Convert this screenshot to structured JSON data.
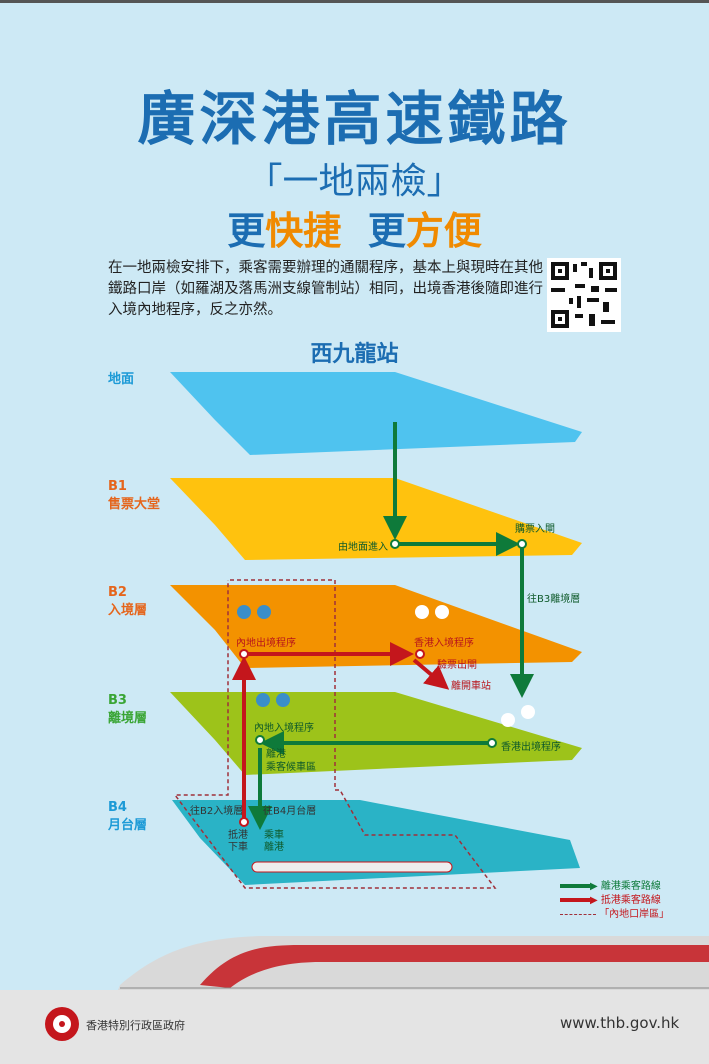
{
  "title": "廣深港高速鐵路",
  "subtitle": "「一地兩檢」",
  "slogan": {
    "part1": "更",
    "part2": "快捷",
    "part3": "更",
    "part4": "方便"
  },
  "intro": "在一地兩檢安排下，乘客需要辦理的通關程序，基本上與現時在其他鐵路口岸（如羅湖及落馬洲支線管制站）相同，出境香港後隨即進行入境內地程序，反之亦然。",
  "station": "西九龍站",
  "levels": [
    {
      "code": "",
      "name": "地面",
      "color": "#4fc3ef",
      "label_color": "#1c9ad6"
    },
    {
      "code": "B1",
      "name": "售票大堂",
      "color": "#ffc20e",
      "label_color": "#e5651c"
    },
    {
      "code": "B2",
      "name": "入境層",
      "color": "#f39200",
      "label_color": "#e5651c"
    },
    {
      "code": "B3",
      "name": "離境層",
      "color": "#9dc31a",
      "label_color": "#3aa535"
    },
    {
      "code": "B4",
      "name": "月台層",
      "color": "#2ab3c6",
      "label_color": "#1c9ad6"
    }
  ],
  "labels": {
    "enter_ground": "由地面進入",
    "buy_ticket": "購票入閘",
    "to_b3": "往B3離境層",
    "mainland_exit": "內地出境程序",
    "hk_entry": "香港入境程序",
    "ticket_exit": "驗票出閘",
    "leave_station": "離開車站",
    "mainland_entry": "內地入境程序",
    "hk_exit": "香港出境程序",
    "waiting": "離港",
    "waiting2": "乘客候車區",
    "to_b2": "往B2入境層",
    "to_b4": "往B4月台層",
    "arrive1": "抵港",
    "arrive2": "下車",
    "board1": "乘車",
    "board2": "離港"
  },
  "legend": {
    "departing": "離港乘客路線",
    "arriving": "抵港乘客路線",
    "zone": "「內地口岸區」"
  },
  "colors": {
    "departing": "#0e7a3a",
    "arriving": "#c4161c",
    "zone": "#a0303a",
    "title": "#1c6db2",
    "accent": "#f08a00"
  },
  "footer": {
    "government": "香港特別行政區政府",
    "url": "www.thb.gov.hk"
  }
}
